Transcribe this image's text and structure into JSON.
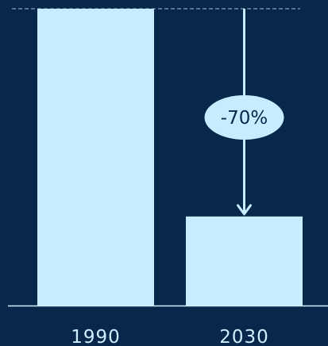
{
  "colors": {
    "background": "#07284a",
    "bar": "#c8ecff",
    "baseline": "#cfeeff",
    "arrow": "#c8ecff",
    "annotation_text": "#07284a",
    "reference_line": "#cfeeff"
  },
  "chart_data": {
    "type": "bar",
    "title": "",
    "xlabel": "",
    "ylabel": "",
    "categories": [
      "1990",
      "2030"
    ],
    "values": [
      100,
      30
    ],
    "ylim": [
      0,
      100
    ],
    "grid": false,
    "legend": "none",
    "annotations": [
      {
        "text": "-70%",
        "from_category": "1990",
        "to_category": "2030",
        "style": "downward arrow from 1990 level to 2030 bar with oval label"
      }
    ],
    "reference_line": {
      "value": 100,
      "style": "dashed"
    }
  }
}
